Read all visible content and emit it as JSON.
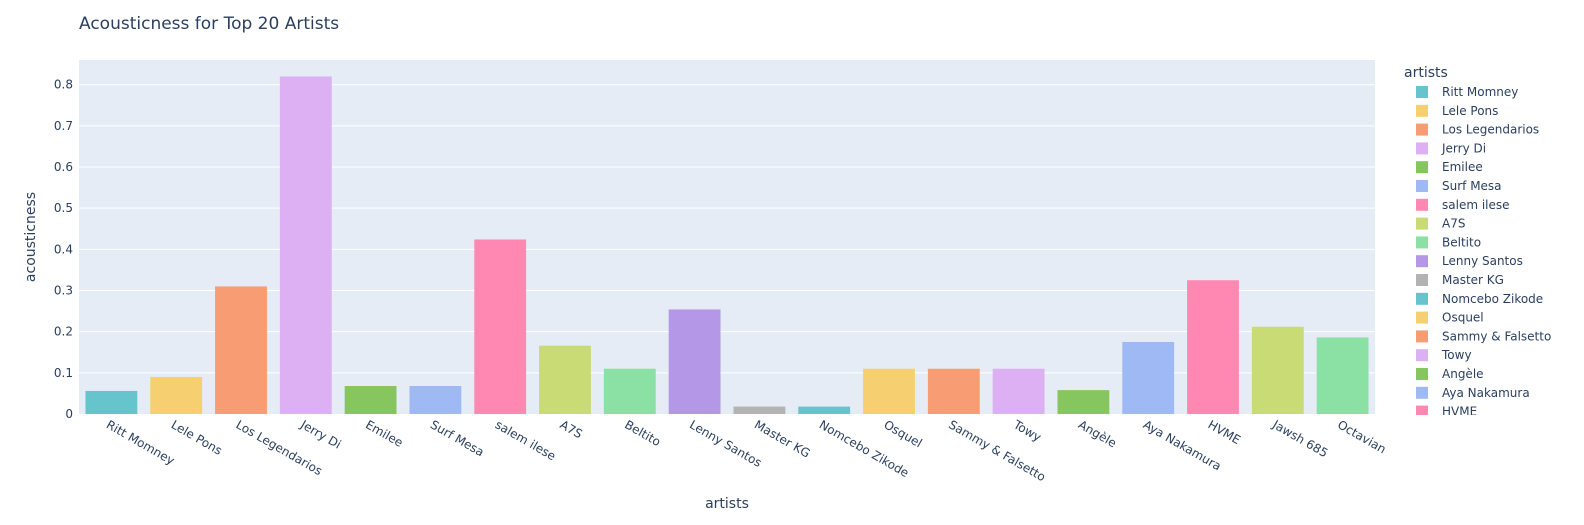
{
  "chart_data": {
    "type": "bar",
    "title": "Acousticness for Top 20 Artists",
    "xlabel": "artists",
    "ylabel": "acousticness",
    "ylim": [
      0,
      0.86
    ],
    "yticks": [
      "0",
      "0.1",
      "0.2",
      "0.3",
      "0.4",
      "0.5",
      "0.6",
      "0.7",
      "0.8"
    ],
    "grid": true,
    "legend_title": "artists",
    "legend_position": "right",
    "categories": [
      "Ritt Momney",
      "Lele Pons",
      "Los Legendarios",
      "Jerry Di",
      "Emilee",
      "Surf Mesa",
      "salem ilese",
      "A7S",
      "Beltito",
      "Lenny Santos",
      "Master KG",
      "Nomcebo Zikode",
      "Osquel",
      "Sammy & Falsetto",
      "Towy",
      "Angèle",
      "Aya Nakamura",
      "HVME",
      "Jawsh 685",
      "Octavian"
    ],
    "values": [
      0.056,
      0.09,
      0.31,
      0.82,
      0.068,
      0.068,
      0.424,
      0.166,
      0.11,
      0.254,
      0.018,
      0.018,
      0.11,
      0.11,
      0.11,
      0.058,
      0.175,
      0.325,
      0.212,
      0.186
    ],
    "colors": [
      "#66c5cc",
      "#f6cf71",
      "#f89c74",
      "#dcb0f2",
      "#87c55f",
      "#9eb9f3",
      "#fe88b1",
      "#c9db74",
      "#8be0a4",
      "#b497e7",
      "#b3b3b3",
      "#66c5cc",
      "#f6cf71",
      "#f89c74",
      "#dcb0f2",
      "#87c55f",
      "#9eb9f3",
      "#fe88b1",
      "#c9db74",
      "#8be0a4"
    ],
    "legend_items": [
      "Ritt Momney",
      "Lele Pons",
      "Los Legendarios",
      "Jerry Di",
      "Emilee",
      "Surf Mesa",
      "salem ilese",
      "A7S",
      "Beltito",
      "Lenny Santos",
      "Master KG",
      "Nomcebo Zikode",
      "Osquel",
      "Sammy & Falsetto",
      "Towy",
      "Angèle",
      "Aya Nakamura",
      "HVME"
    ]
  }
}
